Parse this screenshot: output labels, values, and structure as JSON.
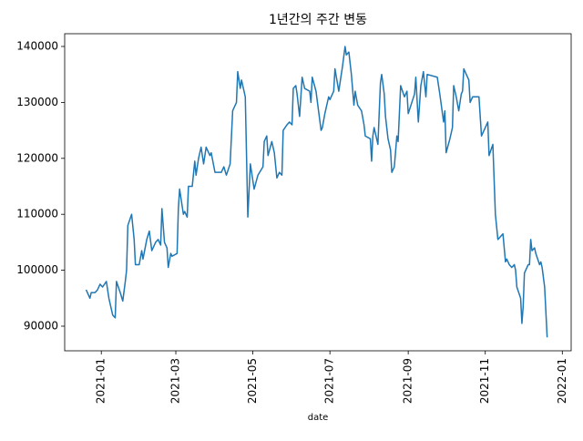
{
  "chart_data": {
    "type": "line",
    "title": "1년간의 주간 변동",
    "xlabel": "date",
    "color": "#1f77b4",
    "x": [
      "2020-12-20",
      "2020-12-23",
      "2020-12-24",
      "2020-12-27",
      "2020-12-29",
      "2020-12-31",
      "2021-01-02",
      "2021-01-05",
      "2021-01-07",
      "2021-01-10",
      "2021-01-12",
      "2021-01-13",
      "2021-01-16",
      "2021-01-18",
      "2021-01-20",
      "2021-01-21",
      "2021-01-22",
      "2021-01-25",
      "2021-01-27",
      "2021-01-28",
      "2021-01-31",
      "2021-02-02",
      "2021-02-03",
      "2021-02-06",
      "2021-02-08",
      "2021-02-10",
      "2021-02-13",
      "2021-02-15",
      "2021-02-17",
      "2021-02-18",
      "2021-02-20",
      "2021-02-22",
      "2021-02-23",
      "2021-02-25",
      "2021-02-26",
      "2021-03-02",
      "2021-03-03",
      "2021-03-04",
      "2021-03-07",
      "2021-03-08",
      "2021-03-10",
      "2021-03-11",
      "2021-03-14",
      "2021-03-16",
      "2021-03-17",
      "2021-03-19",
      "2021-03-21",
      "2021-03-23",
      "2021-03-25",
      "2021-03-28",
      "2021-03-29",
      "2021-04-01",
      "2021-04-06",
      "2021-04-08",
      "2021-04-10",
      "2021-04-13",
      "2021-04-15",
      "2021-04-18",
      "2021-04-19",
      "2021-04-21",
      "2021-04-22",
      "2021-04-25",
      "2021-04-27",
      "2021-04-29",
      "2021-05-02",
      "2021-05-05",
      "2021-05-09",
      "2021-05-10",
      "2021-05-12",
      "2021-05-13",
      "2021-05-16",
      "2021-05-18",
      "2021-05-20",
      "2021-05-22",
      "2021-05-24",
      "2021-05-25",
      "2021-05-28",
      "2021-05-30",
      "2021-06-01",
      "2021-06-02",
      "2021-06-04",
      "2021-06-05",
      "2021-06-07",
      "2021-06-08",
      "2021-06-09",
      "2021-06-11",
      "2021-06-15",
      "2021-06-16",
      "2021-06-17",
      "2021-06-20",
      "2021-06-22",
      "2021-06-24",
      "2021-06-25",
      "2021-06-27",
      "2021-06-30",
      "2021-07-01",
      "2021-07-04",
      "2021-07-05",
      "2021-07-08",
      "2021-07-11",
      "2021-07-13",
      "2021-07-14",
      "2021-07-16",
      "2021-07-18",
      "2021-07-20",
      "2021-07-21",
      "2021-07-23",
      "2021-07-26",
      "2021-07-28",
      "2021-07-29",
      "2021-08-02",
      "2021-08-03",
      "2021-08-04",
      "2021-08-05",
      "2021-08-08",
      "2021-08-10",
      "2021-08-11",
      "2021-08-13",
      "2021-08-14",
      "2021-08-16",
      "2021-08-18",
      "2021-08-19",
      "2021-08-21",
      "2021-08-23",
      "2021-08-24",
      "2021-08-26",
      "2021-08-29",
      "2021-08-31",
      "2021-09-01",
      "2021-09-06",
      "2021-09-07",
      "2021-09-09",
      "2021-09-11",
      "2021-09-13",
      "2021-09-15",
      "2021-09-16",
      "2021-09-24",
      "2021-09-26",
      "2021-09-29",
      "2021-09-30",
      "2021-10-01",
      "2021-10-04",
      "2021-10-06",
      "2021-10-07",
      "2021-10-09",
      "2021-10-11",
      "2021-10-13",
      "2021-10-14",
      "2021-10-15",
      "2021-10-19",
      "2021-10-20",
      "2021-10-22",
      "2021-10-27",
      "2021-10-29",
      "2021-11-01",
      "2021-11-03",
      "2021-11-04",
      "2021-11-07",
      "2021-11-09",
      "2021-11-11",
      "2021-11-13",
      "2021-11-15",
      "2021-11-17",
      "2021-11-18",
      "2021-11-20",
      "2021-11-22",
      "2021-11-24",
      "2021-11-25",
      "2021-11-26",
      "2021-11-29",
      "2021-11-30",
      "2021-12-01",
      "2021-12-02",
      "2021-12-05",
      "2021-12-06",
      "2021-12-07",
      "2021-12-08",
      "2021-12-10",
      "2021-12-11",
      "2021-12-14",
      "2021-12-15",
      "2021-12-16",
      "2021-12-18",
      "2021-12-20"
    ],
    "values": [
      96500,
      95000,
      96000,
      96000,
      96500,
      97500,
      97000,
      98000,
      95000,
      92000,
      91500,
      98000,
      96000,
      94500,
      98000,
      100000,
      108000,
      110000,
      105500,
      101000,
      101000,
      103500,
      102000,
      105500,
      107000,
      103500,
      105000,
      105500,
      104500,
      111000,
      105000,
      104000,
      100500,
      103000,
      102500,
      103000,
      111000,
      114500,
      110000,
      110500,
      109500,
      115000,
      115000,
      119500,
      117000,
      120000,
      122000,
      119000,
      122000,
      120500,
      121000,
      117500,
      117500,
      118500,
      117000,
      119000,
      128500,
      130000,
      135500,
      132500,
      134000,
      131000,
      109500,
      119000,
      114500,
      117000,
      118500,
      123000,
      124000,
      120500,
      123000,
      121000,
      116500,
      117500,
      117000,
      125000,
      126000,
      126500,
      126000,
      132500,
      133000,
      131500,
      127500,
      131000,
      134500,
      132500,
      132000,
      130000,
      134500,
      132000,
      128500,
      125000,
      125500,
      128000,
      131000,
      130500,
      132000,
      136000,
      132000,
      136500,
      140000,
      138500,
      139000,
      135000,
      129500,
      132000,
      129500,
      128500,
      126000,
      124000,
      123500,
      119500,
      124000,
      125500,
      122500,
      133500,
      135000,
      131500,
      127500,
      123500,
      121500,
      117500,
      118500,
      124000,
      123000,
      133000,
      131000,
      132000,
      128000,
      131500,
      134500,
      126500,
      133000,
      135500,
      131000,
      135000,
      134500,
      131500,
      126500,
      128500,
      121000,
      123500,
      125500,
      133000,
      131000,
      128500,
      131500,
      132000,
      136000,
      134000,
      130000,
      131000,
      131000,
      124000,
      125500,
      126500,
      120500,
      122500,
      110000,
      105500,
      106000,
      106500,
      101500,
      102000,
      101000,
      100500,
      101000,
      100000,
      97000,
      95000,
      90500,
      93500,
      99500,
      101000,
      101000,
      105500,
      103500,
      104000,
      103000,
      101000,
      101500,
      100500,
      97000,
      88000
    ],
    "xlim": [
      "2020-12-03",
      "2022-01-08"
    ],
    "xticks": [
      {
        "value": "2021-01-01",
        "label": "2021-01"
      },
      {
        "value": "2021-03-01",
        "label": "2021-03"
      },
      {
        "value": "2021-05-01",
        "label": "2021-05"
      },
      {
        "value": "2021-07-01",
        "label": "2021-07"
      },
      {
        "value": "2021-09-01",
        "label": "2021-09"
      },
      {
        "value": "2021-11-01",
        "label": "2021-11"
      },
      {
        "value": "2022-01-01",
        "label": "2022-01"
      }
    ],
    "ylim": [
      85600,
      142280
    ],
    "yticks": [
      90000,
      100000,
      110000,
      120000,
      130000,
      140000
    ],
    "grid": false
  }
}
